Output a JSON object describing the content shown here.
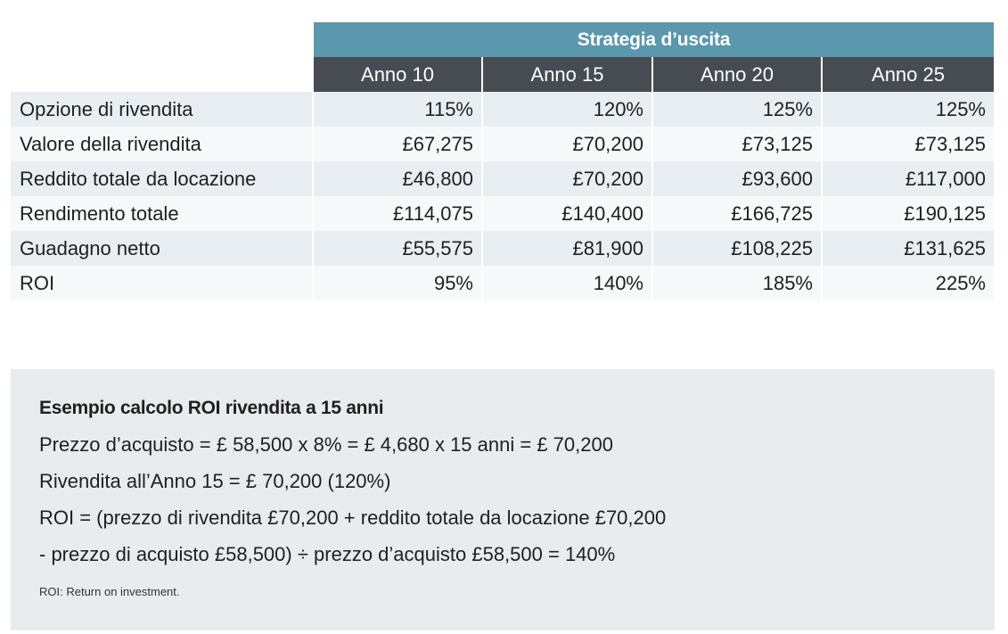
{
  "table": {
    "group_header": "Strategia d’uscita",
    "years": [
      "Anno 10",
      "Anno 15",
      "Anno 20",
      "Anno 25"
    ],
    "rows": [
      {
        "label": "Opzione di rivendita",
        "values": [
          "115%",
          "120%",
          "125%",
          "125%"
        ]
      },
      {
        "label": "Valore della rivendita",
        "values": [
          "£67,275",
          "£70,200",
          "£73,125",
          "£73,125"
        ]
      },
      {
        "label": "Reddito totale da locazione",
        "values": [
          "£46,800",
          "£70,200",
          "£93,600",
          "£117,000"
        ]
      },
      {
        "label": "Rendimento totale",
        "values": [
          "£114,075",
          "£140,400",
          "£166,725",
          "£190,125"
        ]
      },
      {
        "label": "Guadagno netto",
        "values": [
          "£55,575",
          "£81,900",
          "£108,225",
          "£131,625"
        ]
      },
      {
        "label": "ROI",
        "values": [
          "95%",
          "140%",
          "185%",
          "225%"
        ]
      }
    ]
  },
  "example": {
    "title": "Esempio calcolo ROI rivendita a 15 anni",
    "lines": [
      "Prezzo d’acquisto = £ 58,500 x 8% = £ 4,680 x 15 anni = £ 70,200",
      "Rivendita all’Anno 15 = £ 70,200 (120%)",
      "ROI = (prezzo di rivendita £70,200 + reddito totale da locazione £70,200",
      "- prezzo di acquisto £58,500) ÷ prezzo d’acquisto £58,500 = 140%"
    ],
    "note": "ROI: Return on investment."
  },
  "colors": {
    "group_header_bg": "#5b97ad",
    "year_header_bg": "#464c52",
    "row_alt_bg": "#e9eef2",
    "example_bg": "#e8ecef"
  }
}
